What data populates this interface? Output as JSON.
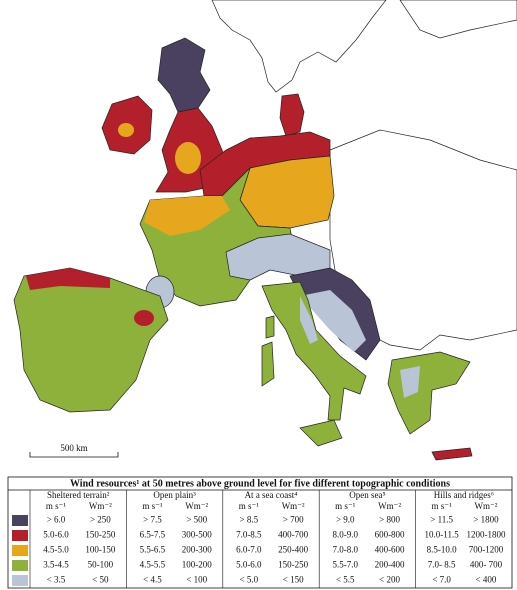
{
  "map": {
    "scale_label": "500 km"
  },
  "legend": {
    "title": "Wind resources¹ at 50 metres above ground level for five different topographic conditions",
    "groups": [
      {
        "name": "Sheltered terrain²",
        "units": [
          "m s⁻¹",
          "Wm⁻²"
        ]
      },
      {
        "name": "Open plain³",
        "units": [
          "m s⁻¹",
          "Wm⁻²"
        ]
      },
      {
        "name": "At a sea coast⁴",
        "units": [
          "m s⁻¹",
          "Wm⁻²"
        ]
      },
      {
        "name": "Open sea⁵",
        "units": [
          "m s⁻¹",
          "Wm⁻²"
        ]
      },
      {
        "name": "Hills and ridges⁶",
        "units": [
          "m s⁻¹",
          "Wm⁻²"
        ]
      }
    ],
    "rows": [
      {
        "color": "#4a4160",
        "cells": [
          "> 6.0",
          "> 250",
          "> 7.5",
          "> 500",
          "> 8.5",
          "> 700",
          "> 9.0",
          "> 800",
          "> 11.5",
          "> 1800"
        ]
      },
      {
        "color": "#b3202b",
        "cells": [
          "5.0-6.0",
          "150-250",
          "6.5-7.5",
          "300-500",
          "7.0-8.5",
          "400-700",
          "8.0-9.0",
          "600-800",
          "10.0-11.5",
          "1200-1800"
        ]
      },
      {
        "color": "#e6a71f",
        "cells": [
          "4.5-5.0",
          "100-150",
          "5.5-6.5",
          "200-300",
          "6.0-7.0",
          "250-400",
          "7.0-8.0",
          "400-600",
          "8.5-10.0",
          "700-1200"
        ]
      },
      {
        "color": "#8db13a",
        "cells": [
          "3.5-4.5",
          "50-100",
          "4.5-5.5",
          "100-200",
          "5.0-6.0",
          "150-250",
          "5.5-7.0",
          "200-400",
          "7.0- 8.5",
          "400- 700"
        ]
      },
      {
        "color": "#b9c4d6",
        "cells": [
          "< 3.5",
          "< 50",
          "< 4.5",
          "< 100",
          "< 5.0",
          "< 150",
          "< 5.5",
          "< 200",
          "< 7.0",
          "< 400"
        ]
      }
    ]
  }
}
